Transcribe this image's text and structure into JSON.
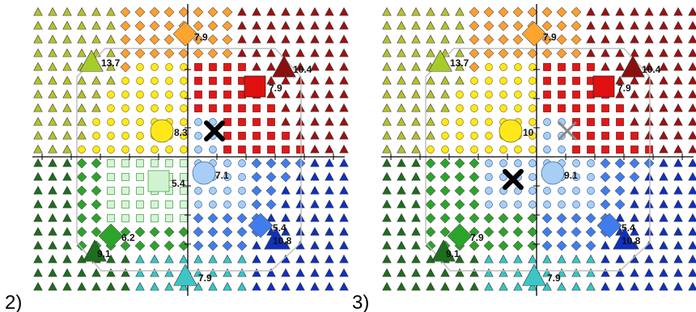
{
  "panels": [
    {
      "label": "2)",
      "labels": {
        "tl_tri": "13.7",
        "top_dia": "7.9",
        "tr_tri": "10.4",
        "red_sq": "7.9",
        "yel_circ": "8.3",
        "lgreen_sq": "5.4",
        "lblue_circ": "7.1",
        "green_dia": "6.2",
        "dgreen_tri": "9.1",
        "blue_dia": "5.4",
        "blue_tri": "10.8",
        "cyan_tri": "7.9"
      },
      "black_x": "center",
      "gray_x": false,
      "lower_left_region": "squares"
    },
    {
      "label": "3)",
      "labels": {
        "tl_tri": "13.7",
        "top_dia": "7.9",
        "tr_tri": "10.4",
        "red_sq": "7.9",
        "yel_circ": "10",
        "lgreen_sq": "",
        "lblue_circ": "9.1",
        "green_dia": "7.9",
        "dgreen_tri": "9.1",
        "blue_dia": "5.4",
        "blue_tri": "10.8",
        "cyan_tri": "7.9"
      },
      "black_x": "lower-left",
      "gray_x": true,
      "lower_left_region": "diamonds"
    }
  ],
  "colors": {
    "olive_tri": "#b5c22a",
    "orange_dia": "#ff9f2e",
    "darkred_tri": "#a01010",
    "red_sq": "#e01818",
    "yellow_circ": "#ffe81a",
    "lblue_circ": "#a8cef5",
    "green_dia": "#2aa52a",
    "lgreen_sq": "#d8f4d8",
    "dgreen_tri": "#1e6e1e",
    "blue_dia": "#3f7dee",
    "navy_tri": "#1030c0",
    "cyan_tri": "#34c6c6",
    "big_lime_tri": "#a6cc2a",
    "big_darkred_tri": "#8a1010",
    "big_orange_dia": "#ffa52e",
    "big_red_sq": "#e01010",
    "big_yellow_circ": "#ffe81a",
    "big_lgreen_sq": "#d2f3d2",
    "big_lblue_circ": "#a8cef5",
    "big_green_dia": "#2aa52a",
    "big_dgreen_tri": "#1e6e1e",
    "big_blue_dia": "#3f7dee",
    "big_navy_tri": "#1030c0",
    "big_cyan_tri": "#3cc6c6"
  }
}
